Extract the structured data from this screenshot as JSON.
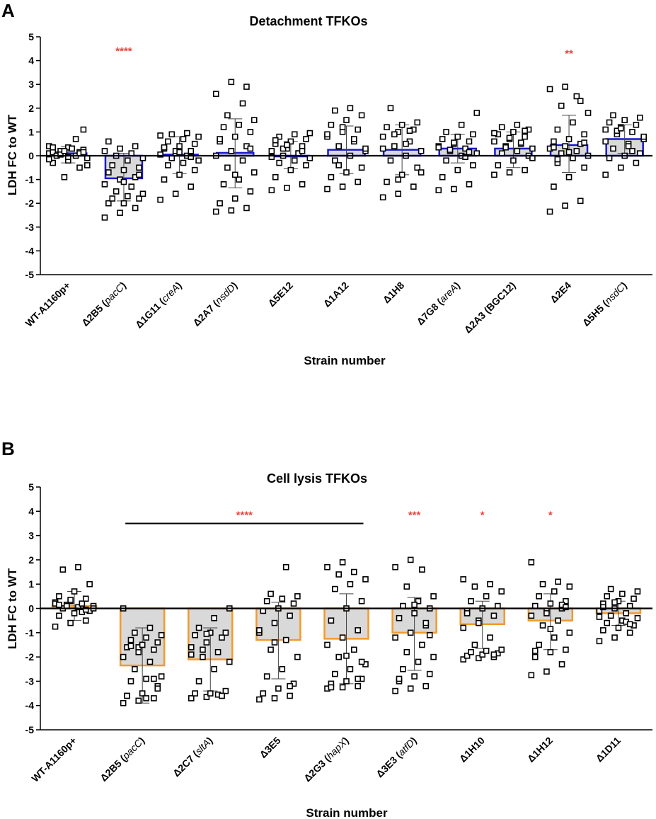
{
  "panel_labels": [
    "A",
    "B"
  ],
  "colors": {
    "bar_fill": "#d9d9d9",
    "detachment_bar_stroke": "#1a1acc",
    "lysis_bar_stroke": "#f39a2b",
    "significance": "#e8413c",
    "points": "#000000"
  },
  "chart_data": [
    {
      "type": "bar",
      "title": "Detachment TFKOs",
      "xlabel": "Strain number",
      "ylabel": "LDH FC to WT",
      "ylim": [
        -5,
        5
      ],
      "yticks": [
        5,
        4,
        3,
        2,
        1,
        0,
        -1,
        -2,
        -3,
        -4,
        -5
      ],
      "categories": [
        "WT-A1160p+",
        "Δ2B5 (pacC)",
        "Δ1G11 (creA)",
        "Δ2A7 (nsdD)",
        "Δ5E12",
        "Δ1A12",
        "Δ1H8",
        "Δ7G8 (areA)",
        "Δ2A3 (BGC12)",
        "Δ2E4",
        "Δ5H5 (nsdC)"
      ],
      "category_parts": [
        {
          "pre": "WT-A1160p+",
          "it": "",
          "post": ""
        },
        {
          "pre": "Δ2B5 (",
          "it": "pacC",
          "post": ")"
        },
        {
          "pre": "Δ1G11 (",
          "it": "creA",
          "post": ")"
        },
        {
          "pre": "Δ2A7 (",
          "it": "nsdD",
          "post": ")"
        },
        {
          "pre": "Δ5E12",
          "it": "",
          "post": ""
        },
        {
          "pre": "Δ1A12",
          "it": "",
          "post": ""
        },
        {
          "pre": "Δ1H8",
          "it": "",
          "post": ""
        },
        {
          "pre": "Δ7G8 (",
          "it": "areA",
          "post": ")"
        },
        {
          "pre": "Δ2A3 (BGC12)",
          "it": "",
          "post": ""
        },
        {
          "pre": "Δ2E4",
          "it": "",
          "post": ""
        },
        {
          "pre": "Δ5H5 (",
          "it": "nsdC",
          "post": ")"
        }
      ],
      "values": [
        0.1,
        -0.95,
        0.05,
        0.12,
        0.0,
        0.25,
        0.25,
        0.3,
        0.3,
        0.45,
        0.7
      ],
      "error": [
        [
          -0.3,
          0.4
        ],
        [
          -1.9,
          0.1
        ],
        [
          -0.75,
          0.8
        ],
        [
          -1.35,
          1.55
        ],
        [
          -0.55,
          0.6
        ],
        [
          -0.75,
          1.25
        ],
        [
          -0.8,
          1.3
        ],
        [
          -0.3,
          0.9
        ],
        [
          -0.5,
          1.0
        ],
        [
          -0.7,
          1.7
        ],
        [
          0.1,
          1.3
        ]
      ],
      "points": [
        [
          0.1,
          -0.9,
          0.15,
          -0.3,
          0.35,
          1.1,
          0.05,
          0.3,
          -0.1,
          0.2,
          0.0,
          0.4,
          0.1,
          -0.5,
          0.15,
          -0.2,
          0.25,
          0.0,
          0.3,
          -0.4,
          0.05,
          0.7,
          -0.15,
          0.2,
          0.1,
          0.35,
          -0.05,
          0.15
        ],
        [
          -2.6,
          -2.4,
          -2.2,
          -2.0,
          -2.0,
          -1.8,
          -1.8,
          -1.7,
          -1.6,
          -1.5,
          -1.3,
          -1.2,
          -1.0,
          -0.9,
          -0.7,
          -0.6,
          -0.5,
          -0.4,
          -0.2,
          -0.1,
          0.0,
          0.1,
          0.2,
          0.3,
          0.4,
          0.6,
          -1.1,
          -0.8
        ],
        [
          -1.85,
          -1.6,
          -1.3,
          -1.0,
          -0.8,
          -0.6,
          -0.4,
          -0.3,
          -0.2,
          -0.1,
          0.0,
          0.05,
          0.1,
          0.2,
          0.3,
          0.4,
          0.5,
          0.6,
          0.7,
          0.8,
          0.9,
          0.95,
          0.85,
          0.2,
          -0.05,
          0.35,
          0.15
        ],
        [
          -2.35,
          -2.3,
          -2.2,
          -2.0,
          -1.8,
          -1.5,
          -1.2,
          -1.0,
          -0.7,
          -0.5,
          -0.2,
          0.0,
          0.2,
          0.4,
          0.6,
          0.8,
          1.0,
          1.2,
          1.3,
          1.5,
          1.7,
          2.2,
          2.6,
          3.1,
          2.9,
          0.7,
          -0.8,
          0.3
        ],
        [
          -1.45,
          -1.35,
          -1.2,
          -0.9,
          -0.6,
          -0.4,
          -0.3,
          -0.2,
          -0.1,
          0.0,
          0.1,
          0.2,
          0.3,
          0.4,
          0.5,
          0.6,
          0.7,
          0.8,
          0.9,
          0.95,
          0.3,
          0.1,
          -0.05,
          0.45,
          0.2,
          0.65
        ],
        [
          -1.4,
          -1.3,
          -1.1,
          -0.9,
          -0.7,
          -0.5,
          -0.2,
          0.0,
          0.2,
          0.4,
          0.6,
          0.8,
          1.0,
          1.1,
          1.3,
          1.5,
          1.7,
          1.9,
          2.0,
          0.3,
          -0.4,
          0.7,
          0.9,
          1.2
        ],
        [
          -1.75,
          -1.6,
          -1.3,
          -1.1,
          -0.8,
          -0.5,
          -0.2,
          0.0,
          0.2,
          0.4,
          0.6,
          0.8,
          1.0,
          1.1,
          1.2,
          1.3,
          1.4,
          2.0,
          0.5,
          -0.7,
          0.9,
          1.05,
          0.3,
          -1.0
        ],
        [
          -1.45,
          -1.4,
          -1.2,
          -0.9,
          -0.6,
          -0.4,
          -0.2,
          0.0,
          0.1,
          0.2,
          0.3,
          0.4,
          0.5,
          0.6,
          0.7,
          0.8,
          0.9,
          1.0,
          1.3,
          1.8,
          0.25,
          -0.05,
          0.35,
          0.55,
          0.15
        ],
        [
          -0.8,
          -0.7,
          -0.6,
          -0.4,
          -0.2,
          0.0,
          0.1,
          0.2,
          0.3,
          0.4,
          0.5,
          0.6,
          0.7,
          0.8,
          0.9,
          1.0,
          1.1,
          1.2,
          1.3,
          -0.1,
          0.35,
          0.55,
          0.95,
          0.75,
          1.05
        ],
        [
          -2.35,
          -2.1,
          -1.9,
          -1.3,
          -0.9,
          -0.5,
          -0.3,
          -0.1,
          0.0,
          0.1,
          0.2,
          0.3,
          0.4,
          0.5,
          0.6,
          0.7,
          0.9,
          1.1,
          1.4,
          1.8,
          2.1,
          2.5,
          2.8,
          2.9,
          2.3,
          0.35,
          0.15,
          0.55,
          -0.15
        ],
        [
          -0.8,
          -0.5,
          -0.3,
          -0.1,
          0.0,
          0.1,
          0.3,
          0.5,
          0.7,
          0.9,
          1.0,
          1.1,
          1.2,
          1.3,
          1.4,
          1.5,
          1.6,
          1.7,
          0.4,
          0.8,
          1.05,
          0.2,
          0.6,
          1.15
        ]
      ],
      "significance": [
        {
          "category": "Δ2B5 (pacC)",
          "label": "****",
          "y": 4.4
        },
        {
          "category": "Δ2E4",
          "label": "**",
          "y": 4.3
        }
      ]
    },
    {
      "type": "bar",
      "title": "Cell lysis TFKOs",
      "xlabel": "Strain number",
      "ylabel": "LDH FC to WT",
      "ylim": [
        -5,
        5
      ],
      "yticks": [
        5,
        4,
        3,
        2,
        1,
        0,
        -1,
        -2,
        -3,
        -4,
        -5
      ],
      "categories": [
        "WT-A1160p+",
        "Δ2B5 (pacC)",
        "Δ2C7 (sltA)",
        "Δ3E5",
        "Δ2G3 (hapX)",
        "Δ3E3 (atfD)",
        "Δ1H10",
        "Δ1H12",
        "Δ1D11"
      ],
      "category_parts": [
        {
          "pre": "WT-A1160p+",
          "it": "",
          "post": ""
        },
        {
          "pre": "Δ2B5 (",
          "it": "pacC",
          "post": ")"
        },
        {
          "pre": "Δ2C7 (",
          "it": "sltA",
          "post": ")"
        },
        {
          "pre": "Δ3E5",
          "it": "",
          "post": ""
        },
        {
          "pre": "Δ2G3 (",
          "it": "hapX",
          "post": ")"
        },
        {
          "pre": "Δ3E3 (",
          "it": "atfD",
          "post": ")"
        },
        {
          "pre": "Δ1H10",
          "it": "",
          "post": ""
        },
        {
          "pre": "Δ1H12",
          "it": "",
          "post": ""
        },
        {
          "pre": "Δ1D11",
          "it": "",
          "post": ""
        }
      ],
      "values": [
        0.1,
        -2.35,
        -2.1,
        -1.3,
        -1.25,
        -1.0,
        -0.65,
        -0.5,
        -0.2
      ],
      "error": [
        [
          -0.5,
          0.7
        ],
        [
          -3.9,
          -0.8
        ],
        [
          -3.4,
          -0.8
        ],
        [
          -2.9,
          0.25
        ],
        [
          -3.1,
          0.6
        ],
        [
          -2.55,
          0.45
        ],
        [
          -1.65,
          0.3
        ],
        [
          -1.7,
          0.6
        ],
        [
          -0.7,
          0.3
        ]
      ],
      "points": [
        [
          -0.75,
          -0.6,
          -0.5,
          -0.3,
          -0.2,
          -0.1,
          0.0,
          0.05,
          0.1,
          0.15,
          0.2,
          0.25,
          0.3,
          0.4,
          0.5,
          0.7,
          1.0,
          1.6,
          1.7,
          0.0,
          0.1,
          -0.15,
          0.2,
          0.35,
          -0.05,
          0.15
        ],
        [
          -3.9,
          -3.8,
          -3.7,
          -3.6,
          -3.5,
          -3.2,
          -3.0,
          -2.9,
          -2.8,
          -2.5,
          -2.2,
          -2.0,
          -1.8,
          -1.7,
          -1.6,
          -1.5,
          -1.4,
          -1.3,
          -1.2,
          -1.1,
          -1.0,
          -0.8,
          0.0,
          -1.6,
          -2.9,
          -3.6,
          -1.5,
          -3.3,
          -1.55,
          -3.7
        ],
        [
          -3.7,
          -3.65,
          -3.6,
          -3.5,
          -3.5,
          -3.4,
          -3.0,
          -2.5,
          -2.2,
          -2.0,
          -1.8,
          -1.6,
          -1.4,
          -1.2,
          -1.1,
          -1.0,
          -1.0,
          -0.8,
          -0.4,
          0.0,
          -1.7,
          -3.55,
          -1.9,
          -1.05,
          -3.6
        ],
        [
          -3.75,
          -3.7,
          -3.6,
          -3.5,
          -3.3,
          -3.1,
          -2.8,
          -2.5,
          -2.0,
          -1.7,
          -1.3,
          -1.0,
          -0.6,
          -0.3,
          -0.1,
          0.0,
          0.2,
          0.3,
          0.4,
          0.5,
          0.6,
          1.7,
          -0.9,
          -1.4,
          -3.2
        ],
        [
          -3.3,
          -3.25,
          -3.2,
          -3.1,
          -3.0,
          -2.9,
          -2.7,
          -2.5,
          -2.3,
          -2.0,
          -1.7,
          -1.5,
          -1.2,
          -0.9,
          -0.5,
          0.0,
          0.3,
          0.8,
          1.0,
          1.2,
          1.4,
          1.5,
          1.7,
          1.9,
          -2.9,
          -3.25,
          -1.95,
          -2.2
        ],
        [
          -3.4,
          -3.3,
          -3.2,
          -3.0,
          -2.8,
          -2.7,
          -2.5,
          -2.2,
          -2.0,
          -1.8,
          -1.5,
          -1.2,
          -1.0,
          -0.7,
          -0.4,
          -0.2,
          0.0,
          0.1,
          0.3,
          0.5,
          0.9,
          1.6,
          1.7,
          2.0,
          -0.6,
          -2.9,
          0.15,
          -1.1
        ],
        [
          -2.1,
          -2.05,
          -2.0,
          -1.95,
          -1.9,
          -1.85,
          -1.8,
          -1.75,
          -1.7,
          -1.5,
          -1.2,
          -0.8,
          -0.5,
          -0.3,
          -0.1,
          0.0,
          0.1,
          0.3,
          0.5,
          0.7,
          0.9,
          1.0,
          1.2,
          -0.6,
          -1.9,
          -0.2
        ],
        [
          -2.75,
          -2.6,
          -2.3,
          -2.0,
          -1.8,
          -1.7,
          -1.5,
          -1.2,
          -1.0,
          -0.7,
          -0.5,
          -0.3,
          -0.1,
          0.0,
          0.1,
          0.2,
          0.3,
          0.5,
          0.7,
          0.9,
          1.0,
          1.1,
          1.9,
          -0.2,
          0.15,
          -1.75,
          -0.85,
          0.05
        ],
        [
          -1.35,
          -1.2,
          -1.0,
          -0.9,
          -0.8,
          -0.7,
          -0.6,
          -0.5,
          -0.4,
          -0.3,
          -0.2,
          -0.1,
          0.0,
          0.1,
          0.2,
          0.3,
          0.4,
          0.5,
          0.6,
          0.7,
          0.8,
          -0.55,
          -0.35,
          0.25,
          -0.65,
          0.05
        ]
      ],
      "significance": [
        {
          "category": "Δ2C7 (sltA)",
          "label": "****",
          "y": 3.85,
          "line_from": 1,
          "line_to": 4,
          "line_y": 3.5
        },
        {
          "category": "Δ3E3 (atfD)",
          "label": "***",
          "y": 3.85
        },
        {
          "category": "Δ1H10",
          "label": "*",
          "y": 3.85
        },
        {
          "category": "Δ1H12",
          "label": "*",
          "y": 3.85
        }
      ]
    }
  ]
}
